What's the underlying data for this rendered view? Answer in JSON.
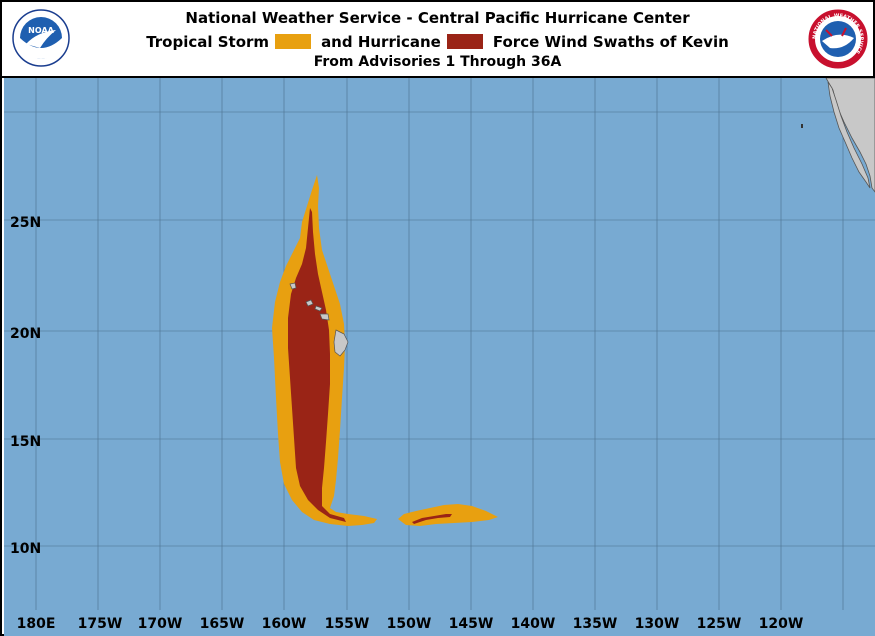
{
  "header": {
    "title": "National Weather Service - Central Pacific Hurricane Center",
    "subtitle_part1": "Tropical Storm",
    "subtitle_part2": "and Hurricane",
    "subtitle_part3": "Force Wind Swaths of Kevin",
    "advisories": "From Advisories 1 Through 36A"
  },
  "logos": {
    "noaa_text": "NOAA",
    "nws_ring_text": "NATIONAL WEATHER SERVICE"
  },
  "legend": [
    {
      "name": "Tropical Storm",
      "color": "#e8a010"
    },
    {
      "name": "Hurricane",
      "color": "#9a2416"
    }
  ],
  "colors": {
    "ocean": "#78aad2",
    "land": "#c8c8c8",
    "grid": "#4a6e8c",
    "tropical_storm": "#e8a010",
    "hurricane": "#9a2416"
  },
  "map": {
    "lat_labels": [
      "25N",
      "20N",
      "15N",
      "10N"
    ],
    "lon_labels": [
      "180E",
      "175W",
      "170W",
      "165W",
      "160W",
      "155W",
      "150W",
      "145W",
      "140W",
      "135W",
      "130W",
      "125W",
      "120W"
    ]
  }
}
